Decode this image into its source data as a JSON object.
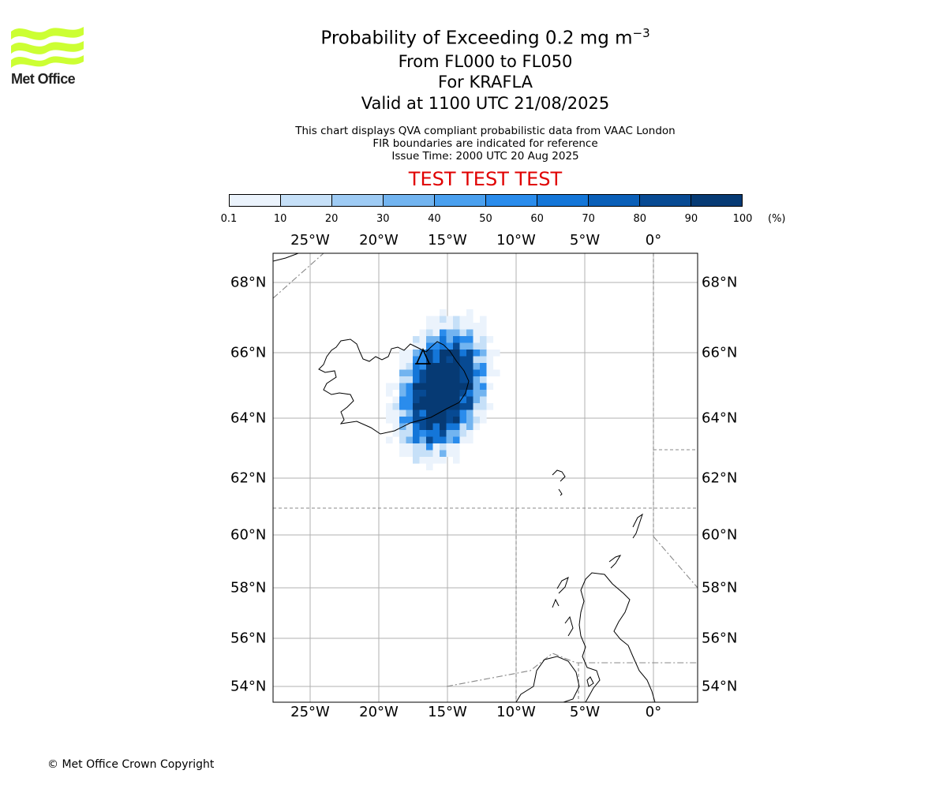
{
  "logo": {
    "text": "Met Office",
    "color": "#ccff33"
  },
  "title": {
    "line1_prefix": "Probability of Exceeding 0.2 mg m",
    "line1_sup": "−3",
    "line2": "From FL000 to FL050",
    "line3": "For KRAFLA",
    "line4": "Valid at 1100 UTC 21/08/2025"
  },
  "subtitle": {
    "line1": "This chart displays QVA compliant probabilistic data from VAAC London",
    "line2": "FIR boundaries are indicated for reference",
    "line3": "Issue Time: 2000 UTC 20 Aug 2025"
  },
  "banner": {
    "text": "TEST TEST TEST",
    "color": "#e00000"
  },
  "colorbar": {
    "ticks": [
      "0.1",
      "10",
      "20",
      "30",
      "40",
      "50",
      "60",
      "70",
      "80",
      "90",
      "100"
    ],
    "unit": "(%)",
    "colors": [
      "#ebf3fc",
      "#c6e0f8",
      "#9ecbf4",
      "#72b4f0",
      "#4aa0ef",
      "#2a8cec",
      "#1476d8",
      "#0a5fb8",
      "#074a93",
      "#063a74"
    ]
  },
  "axes": {
    "lon_labels": [
      "25°W",
      "20°W",
      "15°W",
      "10°W",
      "5°W",
      "0°"
    ],
    "lat_labels": [
      "68°N",
      "66°N",
      "64°N",
      "62°N",
      "60°N",
      "58°N",
      "56°N",
      "54°N"
    ]
  },
  "volcano": {
    "name": "KRAFLA",
    "symbol": "volcano-marker"
  },
  "footer": {
    "copyright": "© Met Office Crown Copyright"
  }
}
